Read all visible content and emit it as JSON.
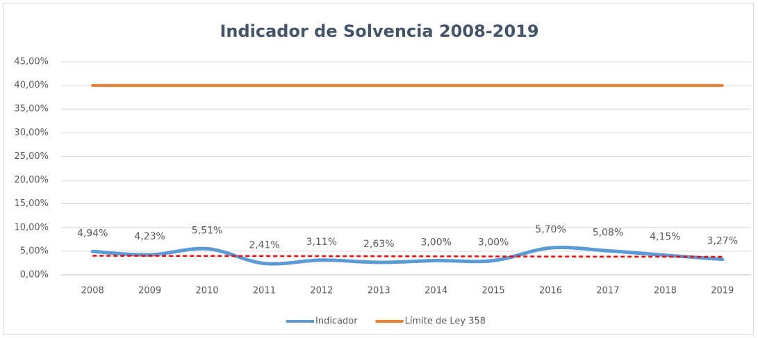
{
  "chart_data": {
    "type": "line",
    "title": "Indicador de Solvencia 2008-2019",
    "categories": [
      "2008",
      "2009",
      "2010",
      "2011",
      "2012",
      "2013",
      "2014",
      "2015",
      "2016",
      "2017",
      "2018",
      "2019"
    ],
    "series": [
      {
        "name": "Indicador",
        "color": "#5b9bd5",
        "smooth": true,
        "values": [
          4.94,
          4.23,
          5.51,
          2.41,
          3.11,
          2.63,
          3.0,
          3.0,
          5.7,
          5.08,
          4.15,
          3.27
        ],
        "value_labels": [
          "4,94%",
          "4,23%",
          "5,51%",
          "2,41%",
          "3,11%",
          "2,63%",
          "3,00%",
          "3,00%",
          "5,70%",
          "5,08%",
          "4,15%",
          "3,27%"
        ],
        "trendline": {
          "color": "#ff0000",
          "dashed": true
        }
      },
      {
        "name": "Límite de Ley 358",
        "color": "#ed7d31",
        "smooth": false,
        "values": [
          40,
          40,
          40,
          40,
          40,
          40,
          40,
          40,
          40,
          40,
          40,
          40
        ]
      }
    ],
    "ylim": [
      0,
      45
    ],
    "yticks": [
      {
        "value": 0,
        "label": "0,00%"
      },
      {
        "value": 5,
        "label": "5,00%"
      },
      {
        "value": 10,
        "label": "10,00%"
      },
      {
        "value": 15,
        "label": "15,00%"
      },
      {
        "value": 20,
        "label": "20,00%"
      },
      {
        "value": 25,
        "label": "25,00%"
      },
      {
        "value": 30,
        "label": "30,00%"
      },
      {
        "value": 35,
        "label": "35,00%"
      },
      {
        "value": 40,
        "label": "40,00%"
      },
      {
        "value": 45,
        "label": "45,00%"
      }
    ],
    "grid": true,
    "legend": "bottom"
  }
}
